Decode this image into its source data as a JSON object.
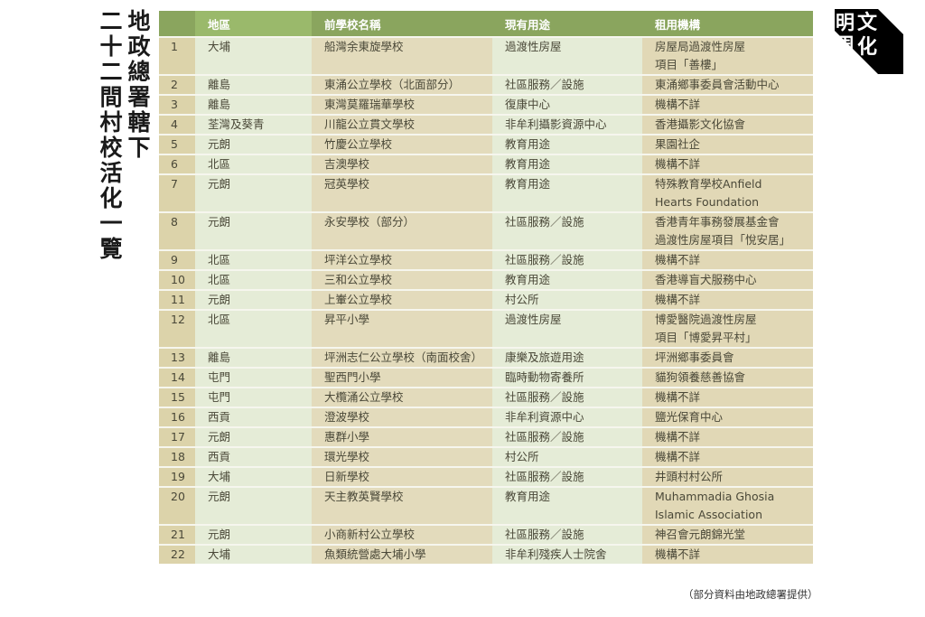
{
  "title": {
    "line1": "地政總署轄下",
    "line2": "二十二間村校活化一覽"
  },
  "logo": {
    "text": "明周文化"
  },
  "table": {
    "headers": [
      "",
      "地區",
      "前學校名稱",
      "現有用途",
      "租用機構"
    ],
    "rows": [
      {
        "no": "1",
        "district": "大埔",
        "school": "船灣余東旋學校",
        "use": "過渡性房屋",
        "org": [
          "房屋局過渡性房屋",
          "項目「善樓」"
        ]
      },
      {
        "no": "2",
        "district": "離島",
        "school": "東涌公立學校（北面部分）",
        "use": "社區服務／設施",
        "org": [
          "東涌鄉事委員會活動中心"
        ]
      },
      {
        "no": "3",
        "district": "離島",
        "school": "東灣莫羅瑞華學校",
        "use": "復康中心",
        "org": [
          "機構不詳"
        ]
      },
      {
        "no": "4",
        "district": "荃灣及葵青",
        "school": "川龍公立貫文學校",
        "use": "非牟利攝影資源中心",
        "org": [
          "香港攝影文化協會"
        ]
      },
      {
        "no": "5",
        "district": "元朗",
        "school": "竹慶公立學校",
        "use": "教育用途",
        "org": [
          "果園社企"
        ]
      },
      {
        "no": "6",
        "district": "北區",
        "school": "吉澳學校",
        "use": "教育用途",
        "org": [
          "機構不詳"
        ]
      },
      {
        "no": "7",
        "district": "元朗",
        "school": "冠英學校",
        "use": "教育用途",
        "org": [
          "特殊教育學校Anfield",
          "Hearts Foundation"
        ]
      },
      {
        "no": "8",
        "district": "元朗",
        "school": "永安學校（部分）",
        "use": "社區服務／設施",
        "org": [
          "香港青年事務發展基金會",
          "過渡性房屋項目「悅安居」"
        ]
      },
      {
        "no": "9",
        "district": "北區",
        "school": "坪洋公立學校",
        "use": "社區服務／設施",
        "org": [
          "機構不詳"
        ]
      },
      {
        "no": "10",
        "district": "北區",
        "school": "三和公立學校",
        "use": "教育用途",
        "org": [
          "香港導盲犬服務中心"
        ]
      },
      {
        "no": "11",
        "district": "元朗",
        "school": "上輋公立學校",
        "use": "村公所",
        "org": [
          "機構不詳"
        ]
      },
      {
        "no": "12",
        "district": "北區",
        "school": "昇平小學",
        "use": "過渡性房屋",
        "org": [
          "博愛醫院過渡性房屋",
          "項目「博愛昇平村」"
        ]
      },
      {
        "no": "13",
        "district": "離島",
        "school": "坪洲志仁公立學校（南面校舍）",
        "use": "康樂及旅遊用途",
        "org": [
          "坪洲鄉事委員會"
        ]
      },
      {
        "no": "14",
        "district": "屯門",
        "school": "聖西門小學",
        "use": "臨時動物寄養所",
        "org": [
          "貓狗領養慈善協會"
        ]
      },
      {
        "no": "15",
        "district": "屯門",
        "school": "大欖涌公立學校",
        "use": "社區服務／設施",
        "org": [
          "機構不詳"
        ]
      },
      {
        "no": "16",
        "district": "西貢",
        "school": "澄波學校",
        "use": "非牟利資源中心",
        "org": [
          "鹽光保育中心"
        ]
      },
      {
        "no": "17",
        "district": "元朗",
        "school": "惠群小學",
        "use": "社區服務／設施",
        "org": [
          "機構不詳"
        ]
      },
      {
        "no": "18",
        "district": "西貢",
        "school": "環光學校",
        "use": "村公所",
        "org": [
          "機構不詳"
        ]
      },
      {
        "no": "19",
        "district": "大埔",
        "school": "日新學校",
        "use": "社區服務／設施",
        "org": [
          "井頭村村公所"
        ]
      },
      {
        "no": "20",
        "district": "元朗",
        "school": "天主教英賢學校",
        "use": "教育用途",
        "org": [
          "Muhammadia Ghosia",
          "Islamic Association"
        ]
      },
      {
        "no": "21",
        "district": "元朗",
        "school": "小商新村公立學校",
        "use": "社區服務／設施",
        "org": [
          "神召會元朗錦光堂"
        ]
      },
      {
        "no": "22",
        "district": "大埔",
        "school": "魚類統營處大埔小學",
        "use": "非牟利殘疾人士院舍",
        "org": [
          "機構不詳"
        ]
      }
    ]
  },
  "footnote": "（部分資料由地政總署提供）",
  "colors": {
    "header": "#8aa55e",
    "tan": "#dcd3aa",
    "light_green": "#e5ecd7"
  }
}
